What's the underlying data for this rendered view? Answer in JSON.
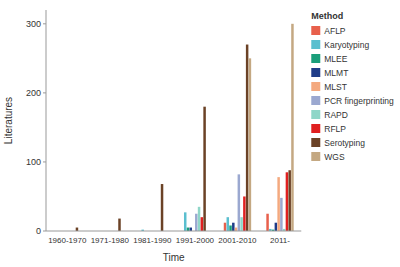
{
  "chart_data": {
    "type": "bar",
    "categories": [
      "1960-1970",
      "1971-1980",
      "1981-1990",
      "1991-2000",
      "2001-2010",
      "2011-"
    ],
    "series": [
      {
        "name": "AFLP",
        "color": "#E8604C",
        "values": [
          0,
          0,
          0,
          0,
          12,
          25
        ]
      },
      {
        "name": "Karyotyping",
        "color": "#5BBFCF",
        "values": [
          0,
          0,
          2,
          27,
          20,
          3
        ]
      },
      {
        "name": "MLEE",
        "color": "#1A9E7A",
        "values": [
          0,
          0,
          0,
          5,
          8,
          2
        ]
      },
      {
        "name": "MLMT",
        "color": "#1F3C88",
        "values": [
          0,
          0,
          0,
          5,
          12,
          12
        ]
      },
      {
        "name": "MLST",
        "color": "#F4A97F",
        "values": [
          0,
          0,
          0,
          0,
          5,
          78
        ]
      },
      {
        "name": "PCR fingerprinting",
        "color": "#9BA8D0",
        "values": [
          0,
          0,
          0,
          25,
          82,
          48
        ]
      },
      {
        "name": "RAPD",
        "color": "#8FD6C8",
        "values": [
          0,
          0,
          0,
          35,
          20,
          3
        ]
      },
      {
        "name": "RFLP",
        "color": "#E02020",
        "values": [
          0,
          0,
          0,
          20,
          50,
          85
        ]
      },
      {
        "name": "Serotyping",
        "color": "#6B4226",
        "values": [
          5,
          18,
          68,
          180,
          270,
          88
        ]
      },
      {
        "name": "WGS",
        "color": "#C4A882",
        "values": [
          0,
          0,
          0,
          0,
          250,
          300
        ]
      }
    ],
    "x_label": "Time",
    "y_label": "Literatures",
    "legend_title": "Method",
    "ylim": [
      0,
      320
    ],
    "yticks": [
      0,
      100,
      200,
      300
    ],
    "grid": false,
    "legend": "right"
  }
}
